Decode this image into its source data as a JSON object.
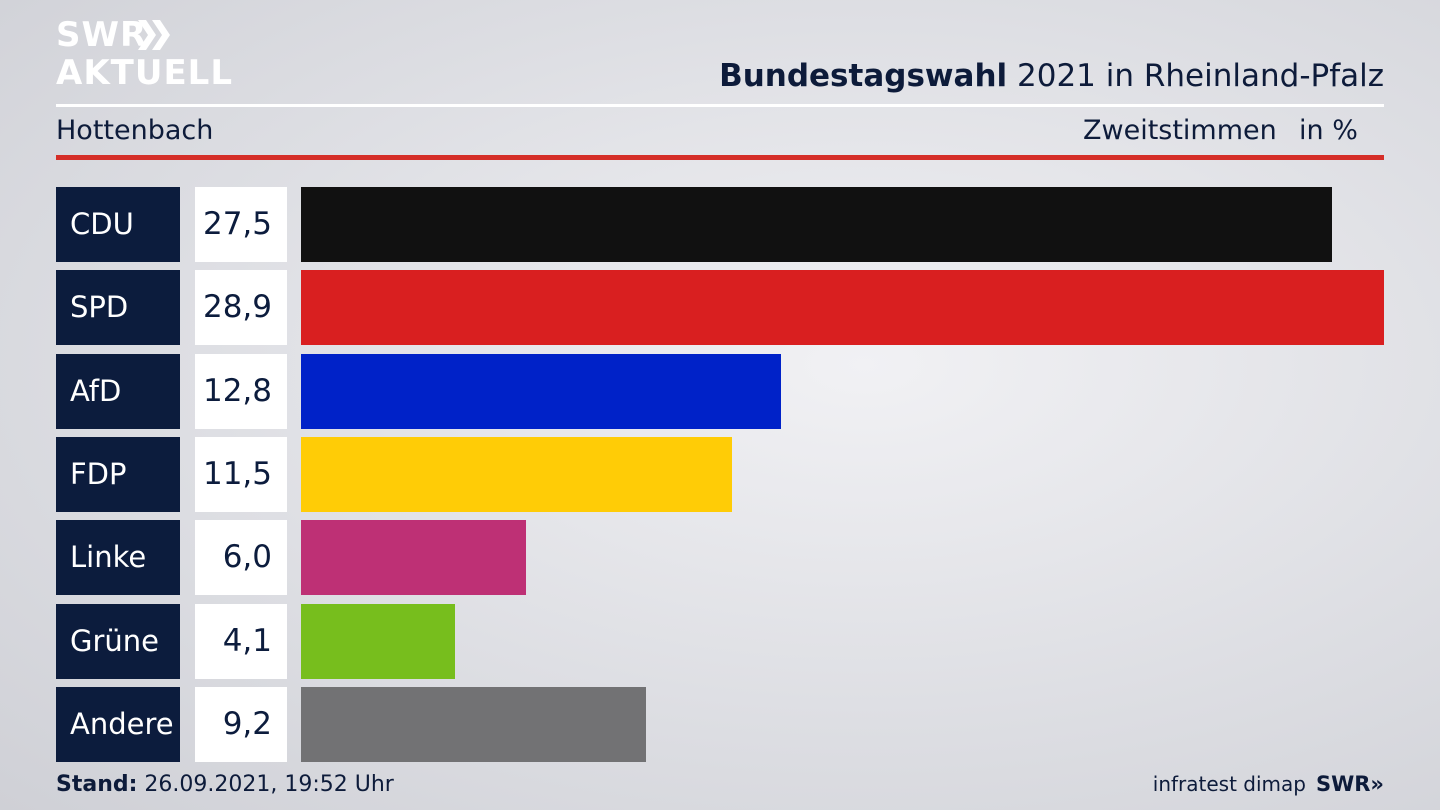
{
  "brand": {
    "logo_line1": "SWR",
    "logo_line2": "AKTUELL",
    "footer_brand": "SWR»"
  },
  "header": {
    "title_bold": "Bundestagswahl",
    "title_rest": " 2021 in Rheinland-Pfalz",
    "region": "Hottenbach",
    "metric": "Zweitstimmen",
    "unit": "in %"
  },
  "footer": {
    "stand_label": "Stand:",
    "stand_value": " 26.09.2021, 19:52 Uhr",
    "source": "infratest dimap"
  },
  "chart_data": {
    "type": "bar",
    "orientation": "horizontal",
    "categories": [
      "CDU",
      "SPD",
      "AfD",
      "FDP",
      "Linke",
      "Grüne",
      "Andere"
    ],
    "values": [
      27.5,
      28.9,
      12.8,
      11.5,
      6.0,
      4.1,
      9.2
    ],
    "value_labels": [
      "27,5",
      "28,9",
      "12,8",
      "11,5",
      "6,0",
      "4,1",
      "9,2"
    ],
    "colors": [
      "#111111",
      "#d91f20",
      "#0022c8",
      "#ffcc06",
      "#be3075",
      "#77be1d",
      "#727274"
    ]
  }
}
